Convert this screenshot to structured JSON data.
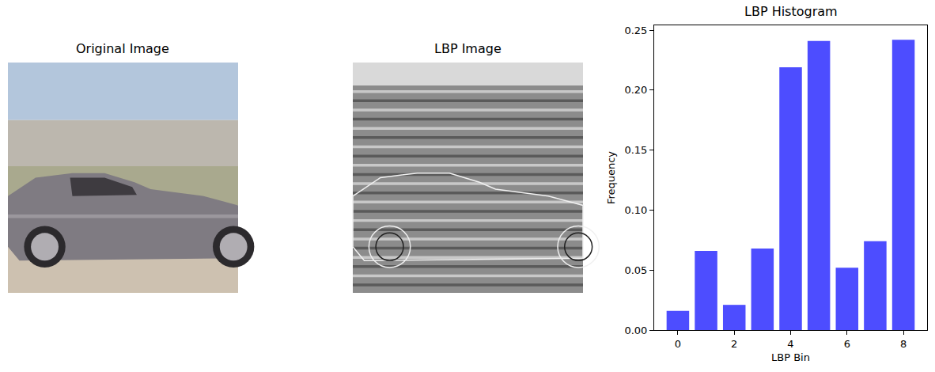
{
  "chart_data": [
    {
      "type": "image",
      "title": "Original Image"
    },
    {
      "type": "image",
      "title": "LBP Image"
    },
    {
      "type": "bar",
      "title": "LBP Histogram",
      "x_label": "LBP Bin",
      "y_label": "Frequency",
      "x": [
        0,
        1,
        2,
        3,
        4,
        5,
        6,
        7,
        8
      ],
      "values": [
        0.016,
        0.066,
        0.021,
        0.068,
        0.219,
        0.241,
        0.052,
        0.074,
        0.242
      ],
      "color": "#4d4dff",
      "xlim": [
        -0.84,
        8.84
      ],
      "ylim": [
        0,
        0.254
      ],
      "xticks": [
        0,
        2,
        4,
        6,
        8
      ],
      "yticks": [
        {
          "value": 0,
          "label": "0.00"
        },
        {
          "value": 0.05,
          "label": "0.05"
        },
        {
          "value": 0.1,
          "label": "0.10"
        },
        {
          "value": 0.15,
          "label": "0.15"
        },
        {
          "value": 0.2,
          "label": "0.20"
        },
        {
          "value": 0.25,
          "label": "0.25"
        }
      ],
      "grid": false
    }
  ]
}
